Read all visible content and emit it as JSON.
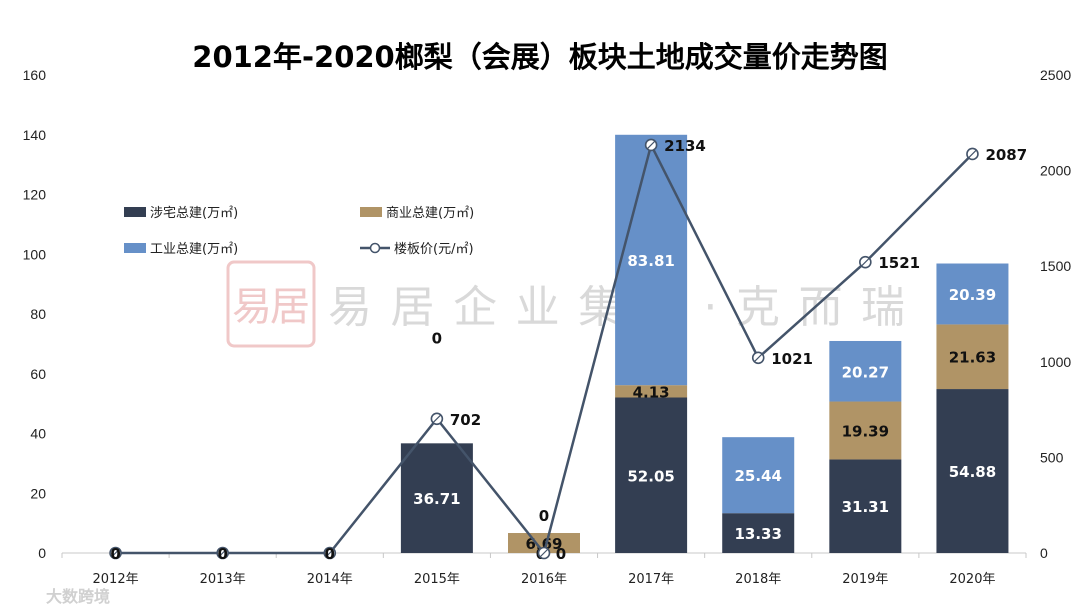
{
  "colors": {
    "residential": "#333e52",
    "commercial": "#b09466",
    "industrial": "#6690c8",
    "line": "#44546a",
    "axis": "#c8c8c8"
  },
  "watermark": {
    "seal": "易居",
    "text": "易居企业集团·克而瑞",
    "corner": "大数跨境"
  },
  "chart_data": {
    "type": "bar",
    "stacked": true,
    "title": "2012年-2020榔梨（会展）板块土地成交量价走势图",
    "categories": [
      "2012年",
      "2013年",
      "2014年",
      "2015年",
      "2016年",
      "2017年",
      "2018年",
      "2019年",
      "2020年"
    ],
    "series": [
      {
        "name": "涉宅总建(万㎡)",
        "key": "residential",
        "values": [
          0,
          0,
          0,
          36.71,
          0,
          52.05,
          13.33,
          31.31,
          54.88
        ],
        "labels": [
          "0",
          "0",
          "0",
          "36.71",
          "0",
          "52.05",
          "13.33",
          "31.31",
          "54.88"
        ]
      },
      {
        "name": "商业总建(万㎡)",
        "key": "commercial",
        "values": [
          0,
          0,
          0,
          0,
          6.69,
          4.13,
          0,
          19.39,
          21.63
        ],
        "labels": [
          "",
          "",
          "",
          "0",
          "6.69",
          "4.13",
          "",
          "19.39",
          "21.63"
        ]
      },
      {
        "name": "工业总建(万㎡)",
        "key": "industrial",
        "values": [
          0,
          0,
          0,
          0,
          0,
          83.81,
          25.44,
          20.27,
          20.39
        ],
        "labels": [
          "",
          "",
          "",
          "",
          "0",
          "83.81",
          "25.44",
          "20.27",
          "20.39"
        ]
      },
      {
        "name": "楼板价(元/㎡)",
        "key": "line",
        "type": "line",
        "axis": "right",
        "values": [
          0,
          0,
          0,
          702,
          0,
          2134,
          1021,
          1521,
          2087
        ],
        "labels": [
          "0",
          "0",
          "0",
          "702",
          "0",
          "2134",
          "1021",
          "1521",
          "2087"
        ]
      }
    ],
    "yleft": {
      "lim": [
        0,
        160
      ],
      "ticks": [
        "0",
        "20",
        "40",
        "60",
        "80",
        "100",
        "120",
        "140",
        "160"
      ]
    },
    "yright": {
      "lim": [
        0,
        2500
      ],
      "ticks": [
        "0",
        "500",
        "1000",
        "1500",
        "2000",
        "2500"
      ]
    },
    "legend": "upper-left"
  }
}
